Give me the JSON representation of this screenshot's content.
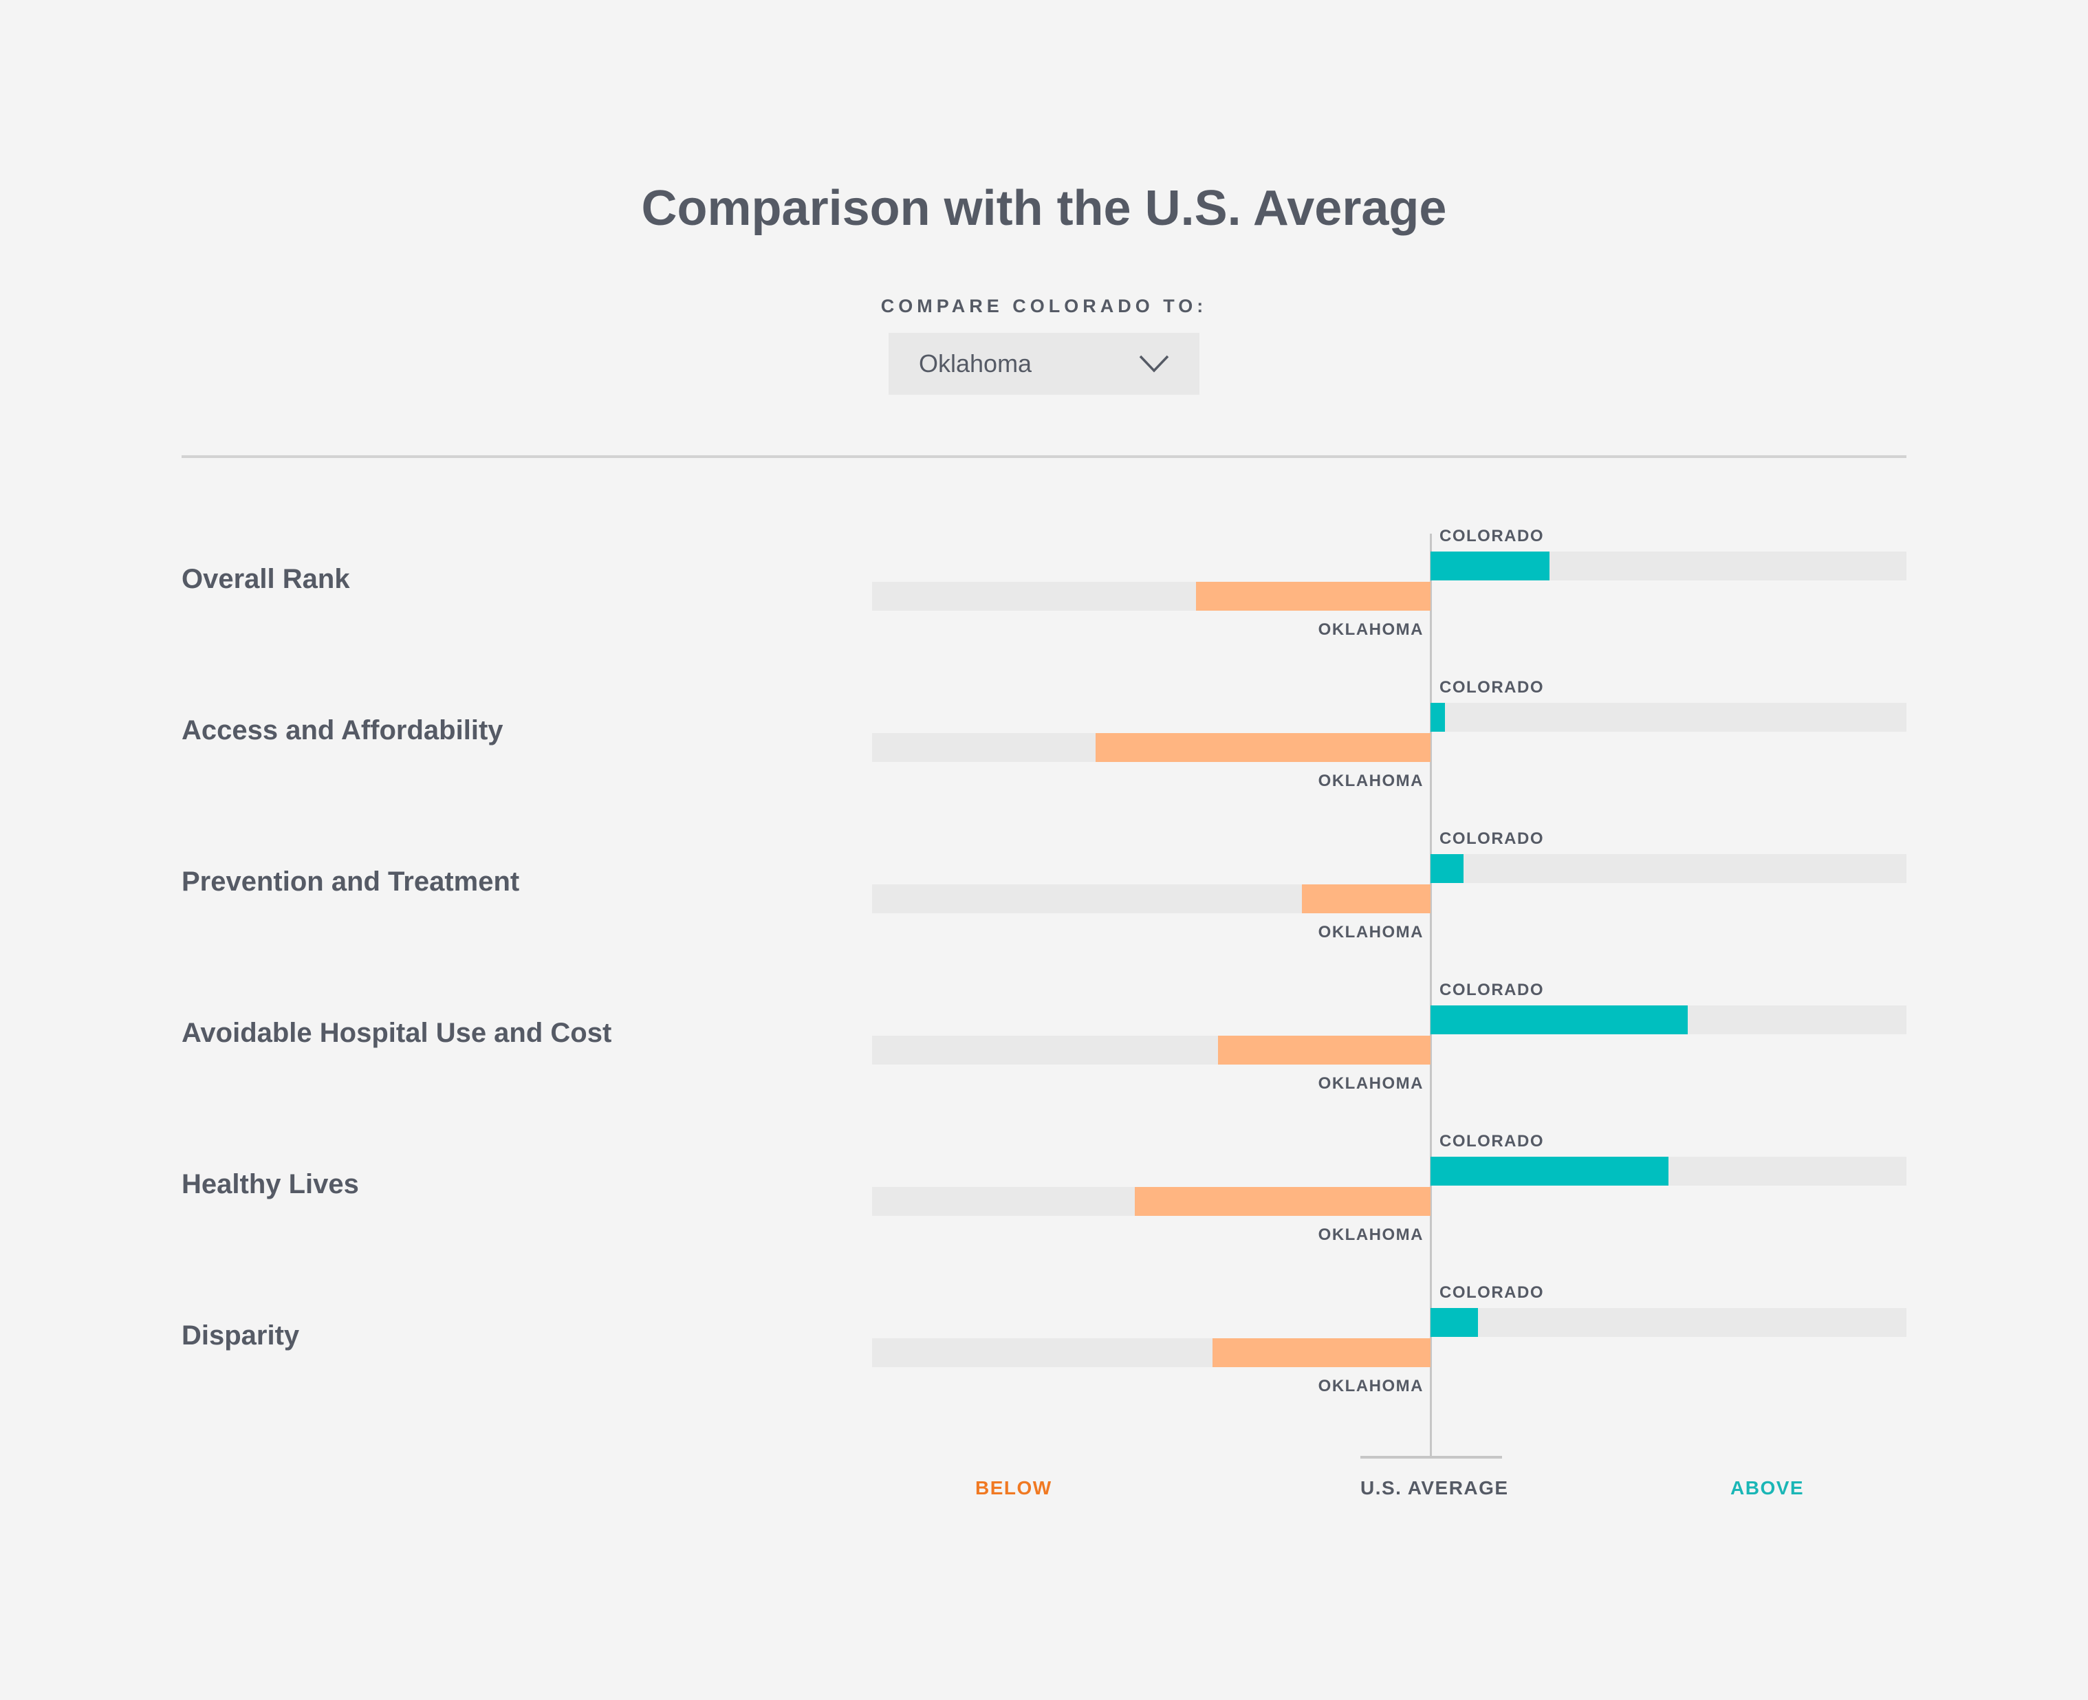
{
  "header": {
    "title": "Comparison with the U.S. Average",
    "compare_label": "COMPARE COLORADO TO:",
    "selected_state": "Oklahoma"
  },
  "chart_data": {
    "type": "bar",
    "title": "Comparison with the U.S. Average",
    "orientation": "horizontal-diverging",
    "baseline_label": "U.S. AVERAGE",
    "below_label": "BELOW",
    "above_label": "ABOVE",
    "scale_note": "values as fraction of full track; positive = above average, negative = below",
    "categories": [
      "Overall Rank",
      "Access and Affordability",
      "Prevention and Treatment",
      "Avoidable Hospital Use and Cost",
      "Healthy Lives",
      "Disparity"
    ],
    "series": [
      {
        "name": "COLORADO",
        "values": [
          0.25,
          0.03,
          0.07,
          0.54,
          0.5,
          0.1
        ]
      },
      {
        "name": "OKLAHOMA",
        "values": [
          -0.42,
          -0.6,
          -0.23,
          -0.38,
          -0.53,
          -0.39
        ]
      }
    ],
    "colors": {
      "colorado": "#00bfbf",
      "oklahoma": "#ffb581",
      "track": "#e9e9e9",
      "below": "#f07922",
      "above": "#1ab6b6"
    }
  }
}
